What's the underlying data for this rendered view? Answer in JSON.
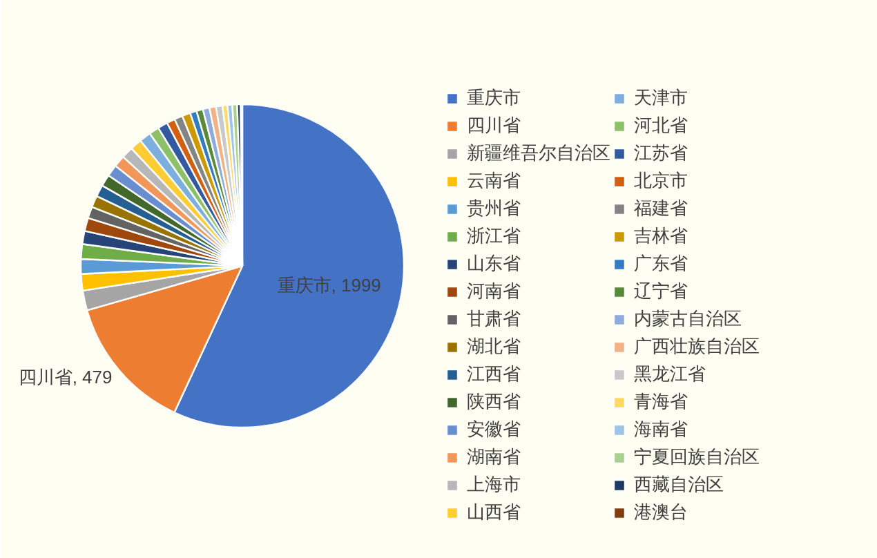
{
  "chart_data": {
    "type": "pie",
    "categories": [
      "重庆市",
      "四川省",
      "新疆维吾尔自治区",
      "云南省",
      "贵州省",
      "浙江省",
      "山东省",
      "河南省",
      "甘肃省",
      "湖北省",
      "江西省",
      "陕西省",
      "安徽省",
      "湖南省",
      "上海市",
      "山西省",
      "天津市",
      "河北省",
      "江苏省",
      "北京市",
      "福建省",
      "吉林省",
      "广东省",
      "辽宁省",
      "内蒙古自治区",
      "广西壮族自治区",
      "黑龙江省",
      "青海省",
      "海南省",
      "宁夏回族自治区",
      "西藏自治区",
      "港澳台"
    ],
    "values": [
      1999,
      479,
      70,
      58,
      52,
      52,
      46,
      46,
      41,
      41,
      41,
      41,
      41,
      41,
      41,
      41,
      41,
      35,
      35,
      29,
      29,
      29,
      23,
      23,
      23,
      23,
      23,
      17,
      17,
      17,
      12,
      6
    ],
    "colors": [
      "#4472c4",
      "#ed7d31",
      "#a5a5a5",
      "#ffc000",
      "#5b9bd5",
      "#70ad47",
      "#264478",
      "#9e480e",
      "#636363",
      "#997300",
      "#255e91",
      "#43682b",
      "#698ed0",
      "#f1975a",
      "#b7b7b7",
      "#ffcd33",
      "#7cafdd",
      "#8cc168",
      "#335aa1",
      "#d26012",
      "#848484",
      "#cc9a00",
      "#327dc2",
      "#5a8a39",
      "#8faadc",
      "#f4b183",
      "#c9c9c9",
      "#ffd966",
      "#9dc3e6",
      "#a9d18e",
      "#203864",
      "#843c0c"
    ],
    "value_labels": [
      "重庆市, 1999",
      "四川省, 479",
      null,
      null,
      null,
      null,
      null,
      null,
      null,
      null,
      null,
      null,
      null,
      null,
      null,
      null,
      null,
      null,
      null,
      null,
      null,
      null,
      null,
      null,
      null,
      null,
      null,
      null,
      null,
      null,
      null,
      null
    ],
    "legend": "right"
  }
}
